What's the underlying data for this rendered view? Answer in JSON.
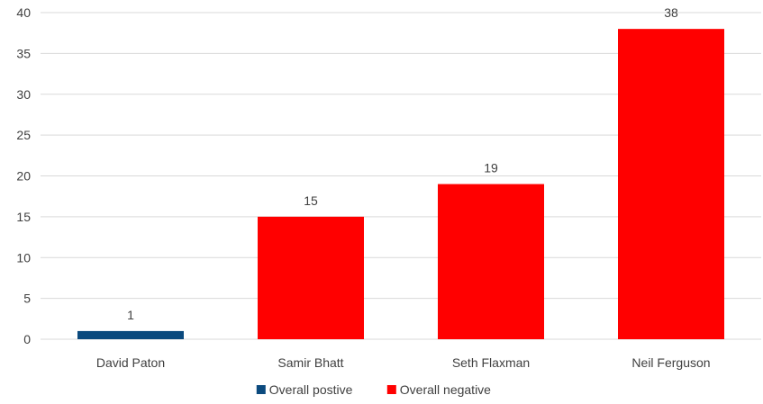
{
  "chart_data": {
    "type": "bar",
    "categories": [
      "David Paton",
      "Samir Bhatt",
      "Seth Flaxman",
      "Neil Ferguson"
    ],
    "values": [
      1,
      15,
      19,
      38
    ],
    "value_labels": [
      "1",
      "15",
      "19",
      "38"
    ],
    "series": [
      {
        "name": "Overall postive",
        "color": "#0b4a7e",
        "categories": [
          "David Paton"
        ]
      },
      {
        "name": "Overall negative",
        "color": "#ff0000",
        "categories": [
          "Samir Bhatt",
          "Seth Flaxman",
          "Neil Ferguson"
        ]
      }
    ],
    "y_ticks": [
      0,
      5,
      10,
      15,
      20,
      25,
      30,
      35,
      40
    ],
    "y_tick_labels": [
      "0",
      "5",
      "10",
      "15",
      "20",
      "25",
      "30",
      "35",
      "40"
    ],
    "ylim": [
      0,
      40
    ],
    "title": "",
    "xlabel": "",
    "ylabel": "",
    "grid": true,
    "legend_position": "bottom"
  }
}
